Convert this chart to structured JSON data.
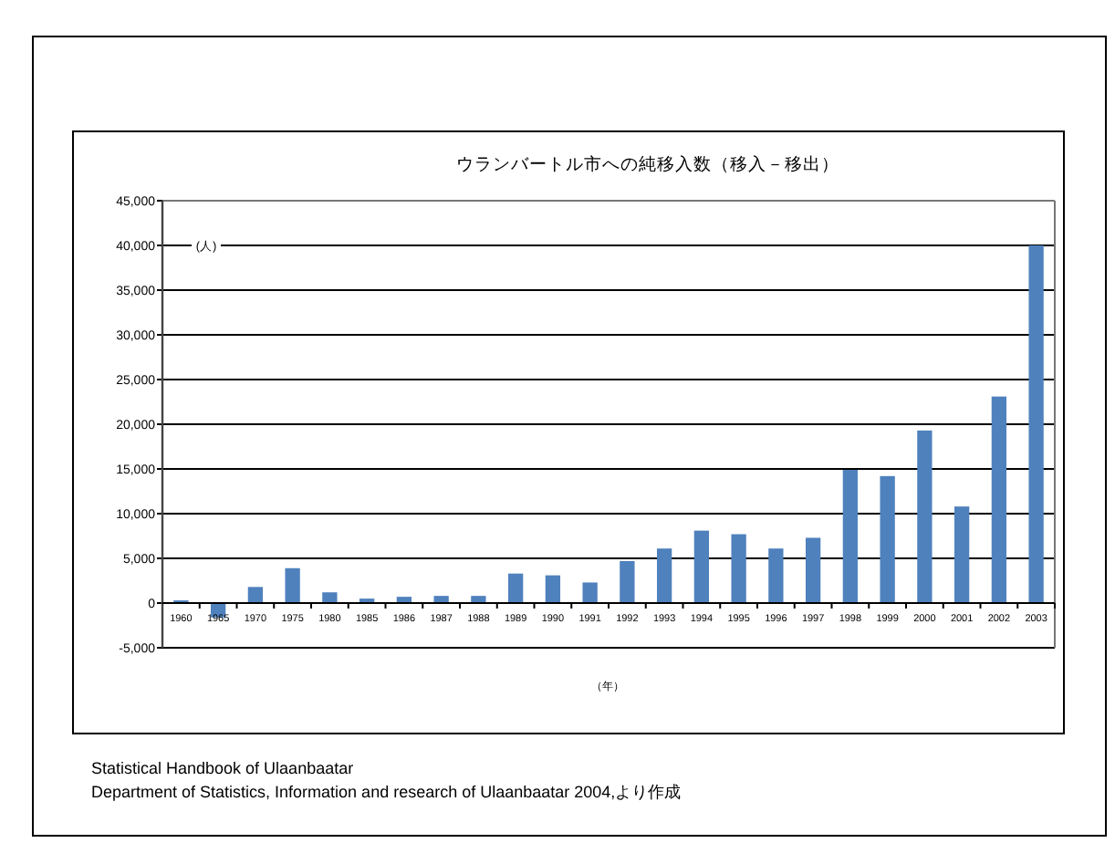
{
  "chart_data": {
    "type": "bar",
    "title": "ウランバートル市への純移入数（移入－移出）",
    "ylabel": "(人)",
    "xlabel": "（年）",
    "categories": [
      "1960",
      "1965",
      "1970",
      "1975",
      "1980",
      "1985",
      "1986",
      "1987",
      "1988",
      "1989",
      "1990",
      "1991",
      "1992",
      "1993",
      "1994",
      "1995",
      "1996",
      "1997",
      "1998",
      "1999",
      "2000",
      "2001",
      "2002",
      "2003"
    ],
    "values": [
      300,
      -1600,
      1800,
      3900,
      1200,
      500,
      700,
      800,
      800,
      3300,
      3100,
      2300,
      4700,
      6100,
      8100,
      7700,
      6100,
      7300,
      14900,
      14200,
      19300,
      10800,
      23100,
      40000
    ],
    "color": "#4f81bd",
    "ylim": [
      -5000,
      45000
    ],
    "yticks": [
      {
        "value": -5000,
        "label": "-5,000"
      },
      {
        "value": 0,
        "label": "0"
      },
      {
        "value": 5000,
        "label": "5,000"
      },
      {
        "value": 10000,
        "label": "10,000"
      },
      {
        "value": 15000,
        "label": "15,000"
      },
      {
        "value": 20000,
        "label": "20,000"
      },
      {
        "value": 25000,
        "label": "25,000"
      },
      {
        "value": 30000,
        "label": "30,000"
      },
      {
        "value": 35000,
        "label": "35,000"
      },
      {
        "value": 40000,
        "label": "40,000"
      },
      {
        "value": 45000,
        "label": "45,000"
      }
    ],
    "grid": "y",
    "annotations": [
      "Statistical Handbook of Ulaanbaatar",
      "Department of Statistics, Information and research of Ulaanbaatar 2004,より作成"
    ]
  }
}
